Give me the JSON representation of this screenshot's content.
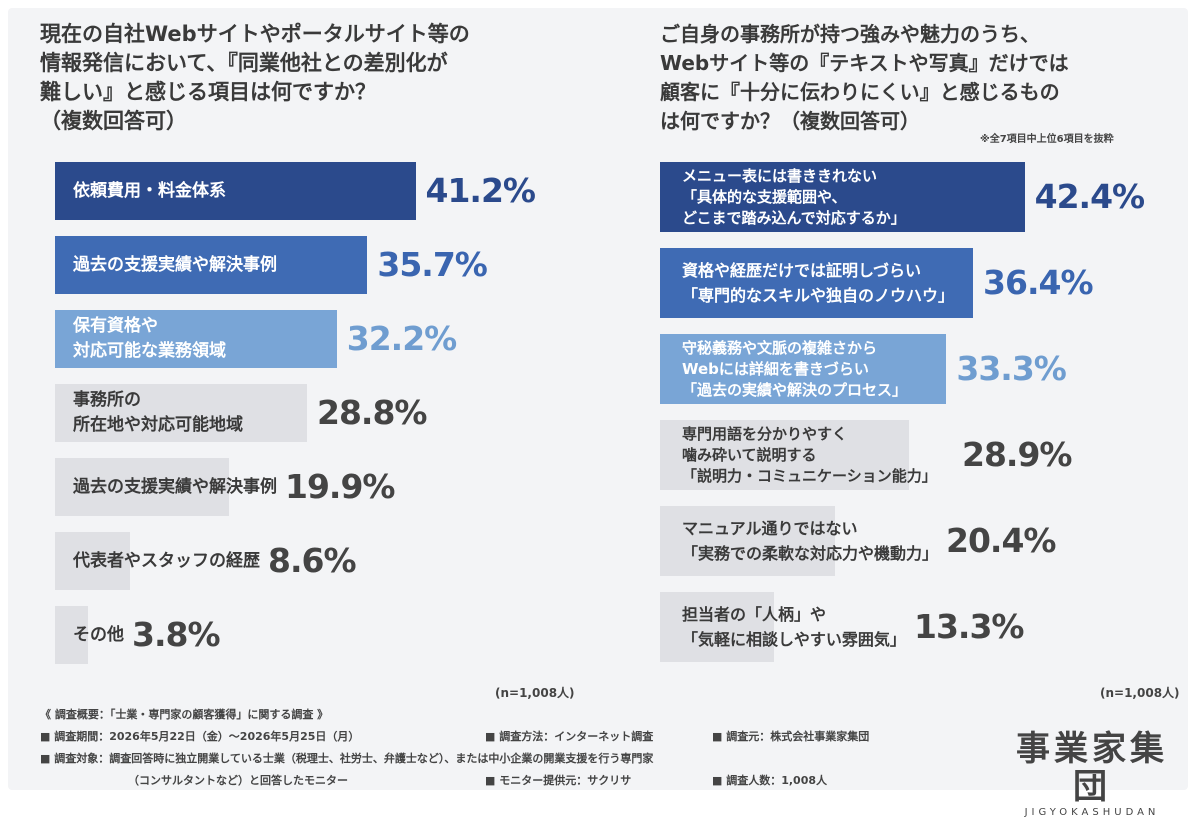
{
  "chart_data": [
    {
      "type": "bar",
      "title": "現在の自社Webサイトやポータルサイト等の\n情報発信において、『同業他社との差別化が\n難しい』と感じる項目は何ですか？\n（複数回答可）",
      "categories": [
        "依頼費用・料金体系",
        "過去の支援実績や解決事例",
        "保有資格や\n対応可能な業務領域",
        "事務所の\n所在地や対応可能地域",
        "過去の支援実績や解決事例",
        "代表者やスタッフの経歴",
        "その他"
      ],
      "values": [
        41.2,
        35.7,
        32.2,
        28.8,
        19.9,
        8.6,
        3.8
      ],
      "value_labels": [
        "41.2%",
        "35.7%",
        "32.2%",
        "28.8%",
        "19.9%",
        "8.6%",
        "3.8%"
      ],
      "xlim": [
        0,
        45
      ],
      "note": "(n=1,008人)"
    },
    {
      "type": "bar",
      "title": "ご自身の事務所が持つ強みや魅力のうち、\nWebサイト等の『テキストや写真』だけでは\n顧客に『十分に伝わりにくい』と感じるもの\nは何ですか？（複数回答可）",
      "subtitle": "※全7項目中上位6項目を抜粋",
      "categories": [
        "メニュー表には書ききれない\n「具体的な支援範囲や、\nどこまで踏み込んで対応するか」",
        "資格や経歴だけでは証明しづらい\n「専門的なスキルや独自のノウハウ」",
        "守秘義務や文脈の複雑さから\nWebには詳細を書きづらい\n「過去の実績や解決のプロセス」",
        "専門用語を分かりやすく\n噛み砕いて説明する\n「説明力・コミュニケーション能力」",
        "マニュアル通りではない\n「実務での柔軟な対応力や機動力」",
        "担当者の「人柄」や\n「気軽に相談しやすい雰囲気」"
      ],
      "values": [
        42.4,
        36.4,
        33.3,
        28.9,
        20.4,
        13.3
      ],
      "value_labels": [
        "42.4%",
        "36.4%",
        "33.3%",
        "28.9%",
        "20.4%",
        "13.3%"
      ],
      "xlim": [
        0,
        45
      ],
      "note": "(n=1,008人)"
    }
  ],
  "colors": {
    "dark": "#2b4a8c",
    "medium": "#3f6bb4",
    "light": "#79a5d6",
    "gray": "#dfe0e4",
    "text_dark": "#3a3a3a",
    "text_light": "#ffffff",
    "value_medium": "#3a65b0",
    "value_light": "#6f9dd0"
  },
  "footer": {
    "summary": "《 調査概要：「士業・専門家の顧客獲得」に関する調査 》",
    "period": "■ 調査期間：2026年5月22日（金）〜2026年5月25日（月）",
    "method": "■ 調査方法：インターネット調査",
    "source": "■ 調査元：株式会社事業家集団",
    "target": "■ 調査対象：調査回答時に独立開業している士業（税理士、社労士、弁護士など）、または中小企業の開業支援を行う専門家",
    "target_cont": "（コンサルタントなど）と回答したモニター",
    "provider": "■ モニター提供元：サクリサ",
    "count": "■ 調査人数：1,008人"
  },
  "logo": {
    "main": "事業家集団",
    "sub": "JIGYOKASHUDAN"
  }
}
